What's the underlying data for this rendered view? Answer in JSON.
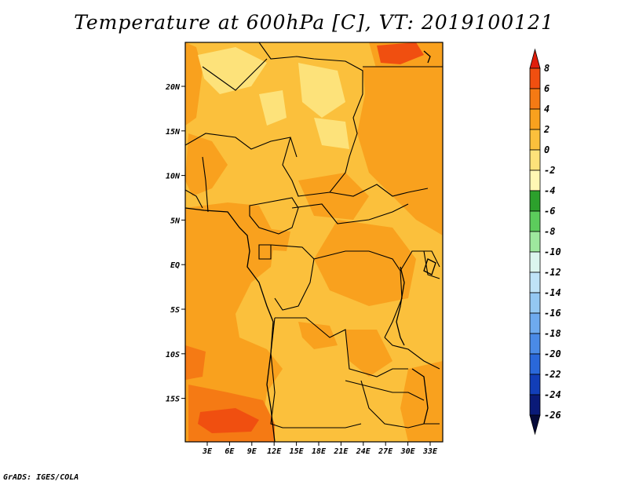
{
  "title": "Temperature at 600hPa [C], VT: 2019100121",
  "credit": "GrADS: IGES/COLA",
  "map": {
    "lon_range": [
      0,
      35
    ],
    "lat_range": [
      -20,
      24.5
    ],
    "x_ticks": [
      "3E",
      "6E",
      "9E",
      "12E",
      "15E",
      "18E",
      "21E",
      "24E",
      "27E",
      "30E",
      "33E"
    ],
    "y_ticks": [
      "20N",
      "15N",
      "10N",
      "5N",
      "EQ",
      "5S",
      "10S",
      "15S"
    ]
  },
  "colorbar": {
    "levels": [
      "8",
      "6",
      "4",
      "2",
      "0",
      "-2",
      "-4",
      "-6",
      "-8",
      "-10",
      "-12",
      "-14",
      "-16",
      "-18",
      "-20",
      "-22",
      "-24",
      "-26"
    ],
    "colors": [
      "#e01e0b",
      "#f04f10",
      "#f57a14",
      "#f9a11e",
      "#fbc03c",
      "#fde27a",
      "#fff7b4",
      "#2ca02c",
      "#5ccc5c",
      "#9ee89e",
      "#dbf5ee",
      "#bfe3f7",
      "#94c8f2",
      "#6eaaee",
      "#4a8ae6",
      "#2a68da",
      "#123eb8",
      "#0a1a78",
      "#060a3a"
    ]
  }
}
